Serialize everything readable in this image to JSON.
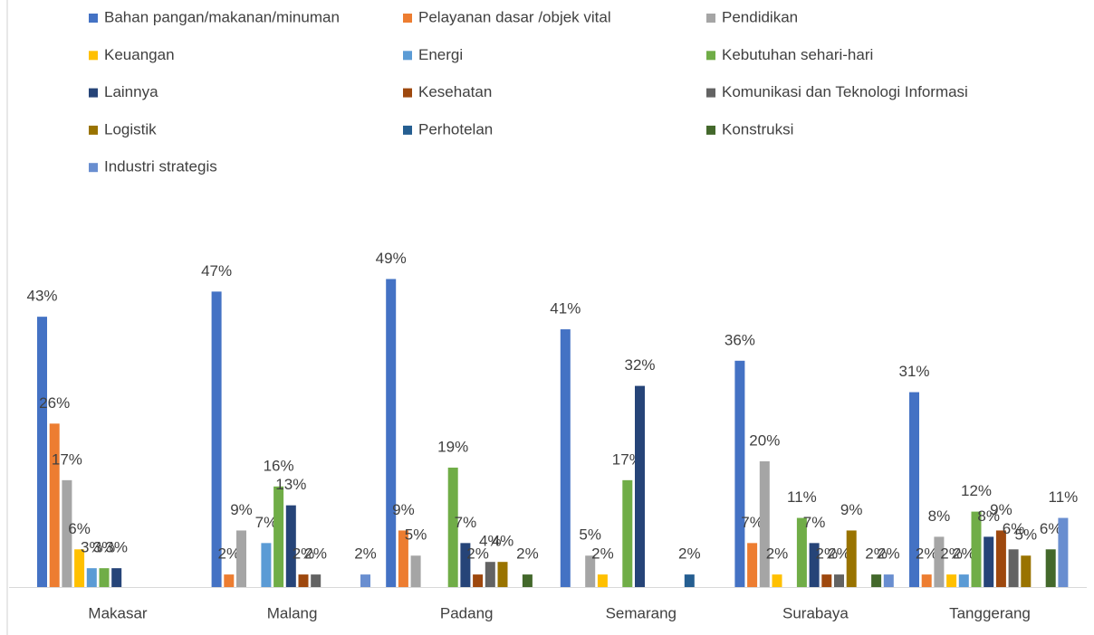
{
  "chart_data": {
    "type": "bar",
    "categories": [
      "Makasar",
      "Malang",
      "Padang",
      "Semarang",
      "Surabaya",
      "Tanggerang"
    ],
    "series": [
      {
        "name": "Bahan pangan/makanan/minuman",
        "color": "#4472c4",
        "values": [
          43,
          47,
          49,
          41,
          36,
          31
        ],
        "value_labels": [
          "43%",
          "47%",
          "49%",
          "41%",
          "36%",
          "31%"
        ]
      },
      {
        "name": "Pelayanan dasar /objek vital",
        "color": "#ed7d31",
        "values": [
          26,
          2,
          9,
          null,
          7,
          2
        ],
        "value_labels": [
          "26%",
          "2%",
          "9%",
          null,
          "7%",
          "2%"
        ]
      },
      {
        "name": "Pendidikan",
        "color": "#a5a5a5",
        "values": [
          17,
          9,
          5,
          5,
          20,
          8
        ],
        "value_labels": [
          "17%",
          "9%",
          "5%",
          "5%",
          "20%",
          "8%"
        ]
      },
      {
        "name": "Keuangan",
        "color": "#ffc000",
        "values": [
          6,
          null,
          null,
          2,
          2,
          2
        ],
        "value_labels": [
          "6%",
          null,
          null,
          "2%",
          "2%",
          "2%"
        ]
      },
      {
        "name": "Energi",
        "color": "#5b9bd5",
        "values": [
          3,
          7,
          null,
          null,
          null,
          2
        ],
        "value_labels": [
          "3%",
          "7%",
          null,
          null,
          null,
          "2%"
        ]
      },
      {
        "name": "Kebutuhan sehari-hari",
        "color": "#70ad47",
        "values": [
          3,
          16,
          19,
          17,
          11,
          12
        ],
        "value_labels": [
          "3%",
          "16%",
          "19%",
          "17%",
          "11%",
          "12%"
        ]
      },
      {
        "name": "Lainnya",
        "color": "#264478",
        "values": [
          3,
          13,
          7,
          32,
          7,
          8
        ],
        "value_labels": [
          "3%",
          "13%",
          "7%",
          "32%",
          "7%",
          "8%"
        ]
      },
      {
        "name": "Kesehatan",
        "color": "#9e480e",
        "values": [
          null,
          2,
          2,
          null,
          2,
          9
        ],
        "value_labels": [
          null,
          "2%",
          "2%",
          null,
          "2%",
          "9%"
        ]
      },
      {
        "name": "Komunikasi dan Teknologi Informasi",
        "color": "#636363",
        "values": [
          null,
          2,
          4,
          null,
          2,
          6
        ],
        "value_labels": [
          null,
          "2%",
          "4%",
          null,
          "2%",
          "6%"
        ]
      },
      {
        "name": "Logistik",
        "color": "#997300",
        "values": [
          null,
          null,
          4,
          null,
          9,
          5
        ],
        "value_labels": [
          null,
          null,
          "4%",
          null,
          "9%",
          "5%"
        ]
      },
      {
        "name": "Perhotelan",
        "color": "#255e91",
        "values": [
          null,
          null,
          null,
          2,
          null,
          null
        ],
        "value_labels": [
          null,
          null,
          null,
          "2%",
          null,
          null
        ]
      },
      {
        "name": "Konstruksi",
        "color": "#43682b",
        "values": [
          null,
          null,
          2,
          null,
          2,
          6
        ],
        "value_labels": [
          null,
          null,
          "2%",
          null,
          "2%",
          "6%"
        ]
      },
      {
        "name": "Industri strategis",
        "color": "#698ed0",
        "values": [
          null,
          2,
          null,
          null,
          2,
          11
        ],
        "value_labels": [
          null,
          "2%",
          null,
          null,
          "2%",
          "11%"
        ]
      }
    ]
  }
}
